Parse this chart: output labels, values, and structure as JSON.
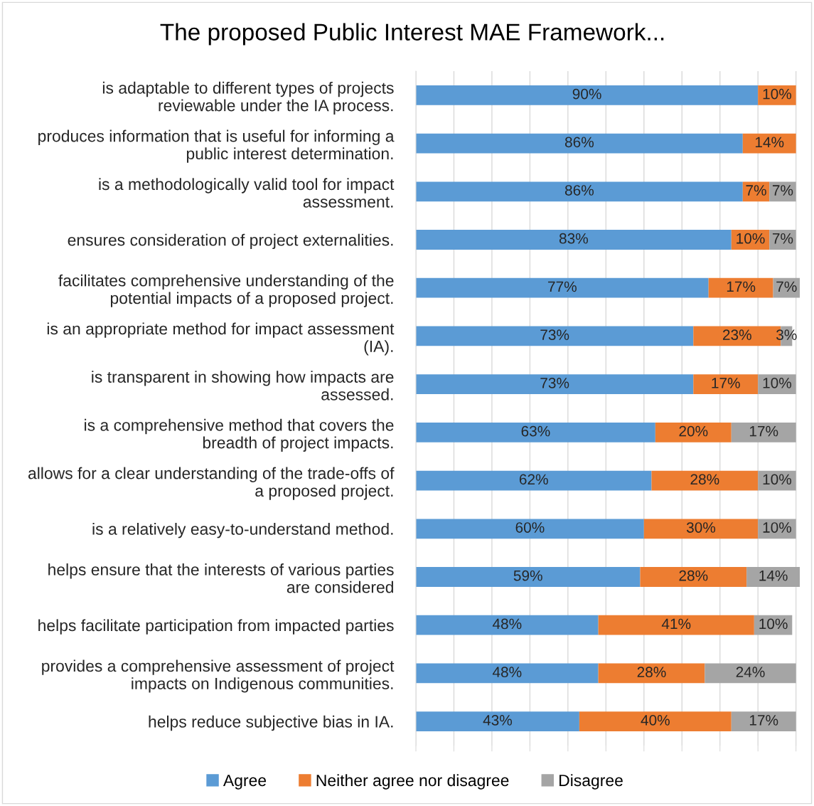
{
  "chart_data": {
    "type": "bar",
    "orientation": "horizontal",
    "stacked": true,
    "title": "The proposed Public Interest MAE Framework...",
    "categories": [
      "is adaptable to different types of projects\nreviewable under the IA process.",
      "produces information that is useful for informing a\npublic interest determination.",
      "is a methodologically valid tool for impact\nassessment.",
      "ensures consideration of project externalities.",
      "facilitates comprehensive understanding of the\npotential impacts of a proposed project.",
      "is an appropriate method for impact assessment\n(IA).",
      "is transparent in showing how impacts are\nassessed.",
      "is a comprehensive method that covers the\nbreadth of project impacts.",
      "allows for a clear understanding of the trade-offs of\na proposed project.",
      "is a relatively easy-to-understand method.",
      "helps ensure that the interests of various parties\nare considered",
      "helps facilitate participation from impacted parties",
      "provides a comprehensive assessment of project\nimpacts on Indigenous communities.",
      "helps reduce subjective bias in IA."
    ],
    "series": [
      {
        "name": "Agree",
        "color": "#5b9bd5",
        "values": [
          90,
          86,
          86,
          83,
          77,
          73,
          73,
          63,
          62,
          60,
          59,
          48,
          48,
          43
        ],
        "value_labels": [
          "90%",
          "86%",
          "86%",
          "83%",
          "77%",
          "73%",
          "73%",
          "63%",
          "62%",
          "60%",
          "59%",
          "48%",
          "48%",
          "43%"
        ]
      },
      {
        "name": "Neither agree nor disagree",
        "color": "#ed7d31",
        "values": [
          10,
          14,
          7,
          10,
          17,
          23,
          17,
          20,
          28,
          30,
          28,
          41,
          28,
          40
        ],
        "value_labels": [
          "10%",
          "14%",
          "7%",
          "10%",
          "17%",
          "23%",
          "17%",
          "20%",
          "28%",
          "30%",
          "28%",
          "41%",
          "28%",
          "40%"
        ]
      },
      {
        "name": "Disagree",
        "color": "#a5a5a5",
        "values": [
          null,
          null,
          7,
          7,
          7,
          3,
          10,
          17,
          10,
          10,
          14,
          10,
          24,
          17
        ],
        "value_labels": [
          null,
          null,
          "7%",
          "7%",
          "7%",
          "3%",
          "10%",
          "17%",
          "10%",
          "10%",
          "14%",
          "10%",
          "24%",
          "17%"
        ]
      }
    ],
    "xlim": [
      0,
      101
    ],
    "xticks": [
      {
        "value": 0,
        "label": null
      },
      {
        "value": 10,
        "label": null
      },
      {
        "value": 20,
        "label": null
      },
      {
        "value": 30,
        "label": null
      },
      {
        "value": 40,
        "label": null
      },
      {
        "value": 50,
        "label": null
      },
      {
        "value": 60,
        "label": null
      },
      {
        "value": 70,
        "label": null
      },
      {
        "value": 80,
        "label": null
      },
      {
        "value": 90,
        "label": null
      },
      {
        "value": 100,
        "label": null
      }
    ],
    "grid": "x",
    "legend": "bottom",
    "tick_labels": "y"
  }
}
